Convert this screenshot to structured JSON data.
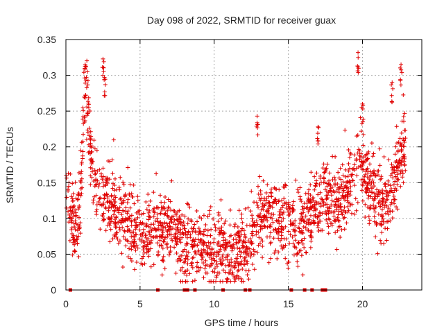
{
  "chart_data": {
    "type": "scatter",
    "title": "Day 098 of 2022, SRMTID for receiver guax",
    "xlabel": "GPS time / hours",
    "ylabel": "SRMTID / TECUs",
    "xlim": [
      0,
      24
    ],
    "ylim": [
      0,
      0.35
    ],
    "xticks": [
      0,
      5,
      10,
      15,
      20
    ],
    "xtick_labels": [
      "0",
      "5",
      "10",
      "15",
      "20"
    ],
    "yticks": [
      0,
      0.05,
      0.1,
      0.15,
      0.2,
      0.25,
      0.3,
      0.35
    ],
    "ytick_labels": [
      "0",
      "0.05",
      "0.1",
      "0.15",
      "0.2",
      "0.25",
      "0.3",
      "0.35"
    ],
    "grid": true,
    "marker": "plus",
    "color": "#e00000",
    "series": [
      {
        "name": "SRMTID",
        "trend_x": [
          0,
          0.3,
          0.6,
          1.0,
          1.2,
          1.4,
          1.8,
          2.3,
          2.8,
          3.5,
          4.2,
          5.0,
          6.0,
          7.0,
          8.0,
          9.0,
          10.0,
          11.0,
          12.0,
          12.6,
          13.2,
          14.0,
          15.0,
          15.8,
          16.5,
          17.5,
          18.5,
          19.0,
          19.5,
          19.8,
          20.2,
          21.0,
          21.8,
          22.2,
          22.6,
          22.9
        ],
        "trend_y": [
          0.14,
          0.12,
          0.08,
          0.13,
          0.26,
          0.27,
          0.16,
          0.14,
          0.13,
          0.1,
          0.1,
          0.08,
          0.075,
          0.09,
          0.06,
          0.065,
          0.05,
          0.055,
          0.05,
          0.08,
          0.1,
          0.1,
          0.09,
          0.08,
          0.1,
          0.13,
          0.12,
          0.14,
          0.15,
          0.2,
          0.16,
          0.12,
          0.12,
          0.16,
          0.19,
          0.2
        ],
        "spread": 0.025,
        "peaks": [
          {
            "x": 1.3,
            "y": 0.315
          },
          {
            "x": 2.5,
            "y": 0.323
          },
          {
            "x": 2.6,
            "y": 0.297
          },
          {
            "x": 12.9,
            "y": 0.243
          },
          {
            "x": 17.0,
            "y": 0.228
          },
          {
            "x": 19.7,
            "y": 0.332
          },
          {
            "x": 20.0,
            "y": 0.26
          },
          {
            "x": 22.0,
            "y": 0.29
          },
          {
            "x": 22.6,
            "y": 0.315
          }
        ],
        "n_points": 2000
      },
      {
        "name": "zero-level markers",
        "x": [
          0.3,
          6.2,
          8.0,
          8.2,
          8.7,
          10.6,
          12.1,
          12.4,
          15.2,
          16.1,
          16.6,
          17.3,
          17.5
        ],
        "y": [
          0,
          0,
          0,
          0,
          0,
          0,
          0,
          0,
          0,
          0,
          0,
          0,
          0
        ]
      }
    ]
  }
}
